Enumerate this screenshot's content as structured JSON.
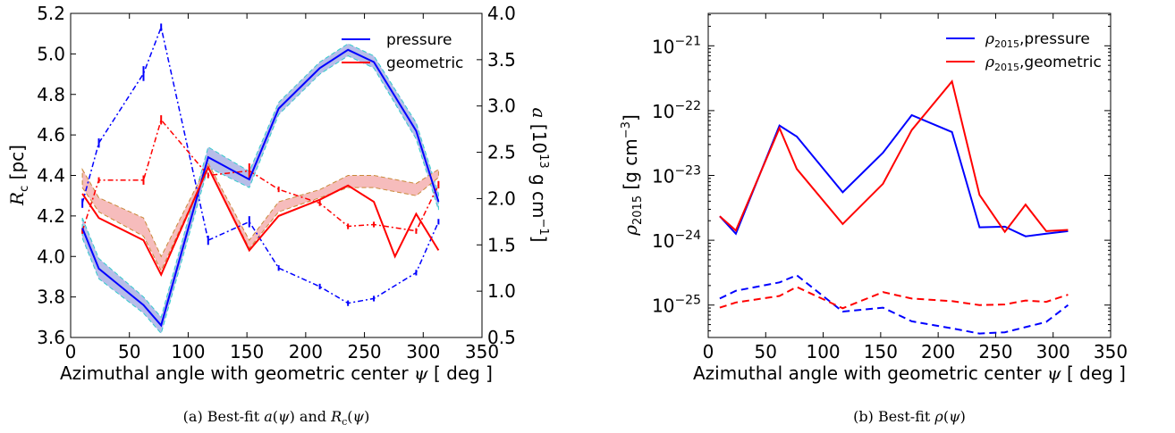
{
  "chart_data": [
    {
      "type": "line",
      "panel": "a",
      "caption": {
        "prefix": "(a) Best-fit ",
        "math1": "a",
        "mid1": "(",
        "psi1": "ψ",
        "mid2": ") and ",
        "math2": "R",
        "sub2": "c",
        "mid3": "(",
        "psi2": "ψ",
        "suffix": ")"
      },
      "xlabel": {
        "text": "Azimuthal angle with geometric center ",
        "sym": "ψ",
        "unit": " [ deg ]"
      },
      "ylabel_left": {
        "sym": "R",
        "sub": "c",
        "unit": " [pc]"
      },
      "ylabel_right": {
        "sym": "a",
        "unit": " [10",
        "exp": "13",
        "unit2": " g cm",
        "exp2": "−1",
        "close": "]"
      },
      "xlim": [
        0,
        350
      ],
      "ylim_left": [
        3.6,
        5.2
      ],
      "ylim_right": [
        0.5,
        4.0
      ],
      "xticks": [
        "0",
        "50",
        "100",
        "150",
        "200",
        "250",
        "300",
        "350"
      ],
      "yticks_left": [
        "3.6",
        "3.8",
        "4.0",
        "4.2",
        "4.4",
        "4.6",
        "4.8",
        "5.0",
        "5.2"
      ],
      "yticks_right": [
        "0.5",
        "1.0",
        "1.5",
        "2.0",
        "2.5",
        "3.0",
        "3.5",
        "4.0"
      ],
      "legend": {
        "position": "top-right",
        "entries": [
          "pressure",
          "geometric"
        ]
      },
      "colors": {
        "pressure": "#0000ff",
        "geometric": "#ff0000",
        "band_pressure": "#b7bde8",
        "band_geometric": "#f6bcbc"
      },
      "x": [
        10,
        24,
        62,
        77,
        117,
        152,
        177,
        212,
        236,
        258,
        294,
        313
      ],
      "series": [
        {
          "name": "pressure",
          "axis": "left",
          "style": "solid",
          "values": [
            4.14,
            3.94,
            3.76,
            3.66,
            4.49,
            4.38,
            4.73,
            4.93,
            5.02,
            4.96,
            4.62,
            4.27
          ],
          "band": [
            0.05,
            0.05,
            0.04,
            0.04,
            0.05,
            0.04,
            0.03,
            0.03,
            0.03,
            0.03,
            0.04,
            0.04
          ]
        },
        {
          "name": "geometric",
          "axis": "left",
          "style": "solid",
          "x": [
            10,
            24,
            62,
            77,
            117,
            152,
            177,
            212,
            236,
            258,
            276,
            294,
            313
          ],
          "values": [
            4.31,
            4.19,
            4.08,
            3.91,
            4.44,
            4.03,
            4.2,
            4.28,
            4.35,
            4.27,
            4.0,
            4.21,
            4.03
          ],
          "band_x": [
            10,
            24,
            62,
            77,
            117,
            152,
            177,
            212,
            236,
            258,
            294,
            313
          ],
          "band_lo": [
            4.34,
            4.22,
            4.1,
            3.93,
            4.44,
            4.04,
            4.22,
            4.29,
            4.34,
            4.34,
            4.3,
            4.39
          ],
          "band_hi": [
            4.43,
            4.29,
            4.19,
            4.0,
            4.46,
            4.08,
            4.27,
            4.33,
            4.4,
            4.4,
            4.36,
            4.43
          ]
        },
        {
          "name": "",
          "axis": "right",
          "style": "dashdot",
          "color": "#0000ff",
          "values": [
            1.95,
            2.6,
            3.35,
            3.85,
            1.55,
            1.75,
            1.25,
            1.05,
            0.87,
            0.92,
            1.2,
            1.75
          ],
          "err": [
            0.05,
            0.05,
            0.08,
            0.04,
            0.05,
            0.06,
            0.03,
            0.03,
            0.03,
            0.03,
            0.03,
            0.03
          ]
        },
        {
          "name": "",
          "axis": "right",
          "style": "dashdot",
          "color": "#ff0000",
          "values": [
            1.65,
            2.2,
            2.2,
            2.85,
            2.25,
            2.3,
            2.1,
            1.95,
            1.7,
            1.72,
            1.65,
            2.15
          ],
          "err": [
            0.03,
            0.03,
            0.05,
            0.05,
            0.03,
            0.08,
            0.03,
            0.03,
            0.03,
            0.03,
            0.03,
            0.04
          ]
        }
      ]
    },
    {
      "type": "line",
      "panel": "b",
      "caption": {
        "prefix": "(b) Best-fit ",
        "math": "ρ",
        "mid": "(",
        "psi": "ψ",
        "suffix": ")"
      },
      "xlabel": {
        "text": "Azimuthal angle with geometric center ",
        "sym": "ψ",
        "unit": " [ deg ]"
      },
      "ylabel": {
        "sym": "ρ",
        "sub": "2015",
        "unit": " [g cm",
        "exp": "−3",
        "close": "]"
      },
      "scale_y": "log",
      "xlim": [
        0,
        350
      ],
      "ylim_exp": [
        -25.5,
        -20.5
      ],
      "xticks": [
        "0",
        "50",
        "100",
        "150",
        "200",
        "250",
        "300",
        "350"
      ],
      "yticks": [
        {
          "base": "10",
          "exp": "−25",
          "v": -25
        },
        {
          "base": "10",
          "exp": "−24",
          "v": -24
        },
        {
          "base": "10",
          "exp": "−23",
          "v": -23
        },
        {
          "base": "10",
          "exp": "−22",
          "v": -22
        },
        {
          "base": "10",
          "exp": "−21",
          "v": -21
        }
      ],
      "legend": {
        "position": "top-right",
        "entries": [
          {
            "sym": "ρ",
            "sub": "2015",
            "text": ",pressure"
          },
          {
            "sym": "ρ",
            "sub": "2015",
            "text": ",geometric"
          }
        ]
      },
      "colors": {
        "pressure": "#0000ff",
        "geometric": "#ff0000"
      },
      "x": [
        10,
        24,
        62,
        77,
        117,
        152,
        177,
        212,
        236,
        258,
        276,
        294,
        313
      ],
      "series": [
        {
          "name": "pressure",
          "style": "solid",
          "color": "#0000ff",
          "log10_values": [
            -23.63,
            -23.9,
            -22.23,
            -22.4,
            -23.26,
            -22.65,
            -22.07,
            -22.33,
            -23.8,
            -23.79,
            -23.94,
            -23.9,
            -23.86
          ]
        },
        {
          "name": "geometric",
          "style": "solid",
          "color": "#ff0000",
          "log10_values": [
            -23.63,
            -23.85,
            -22.27,
            -22.9,
            -23.75,
            -23.13,
            -22.3,
            -21.55,
            -23.3,
            -23.87,
            -23.45,
            -23.86,
            -23.84
          ]
        },
        {
          "name": "",
          "style": "dashed",
          "color": "#0000ff",
          "log10_values": [
            -24.9,
            -24.78,
            -24.65,
            -24.54,
            -25.1,
            -25.04,
            -25.25,
            -25.36,
            -25.44,
            -25.42,
            -25.34,
            -25.26,
            -25.0
          ]
        },
        {
          "name": "",
          "style": "dashed",
          "color": "#ff0000",
          "log10_values": [
            -25.04,
            -24.96,
            -24.86,
            -24.72,
            -25.05,
            -24.8,
            -24.9,
            -24.94,
            -25.0,
            -24.99,
            -24.93,
            -24.95,
            -24.84
          ]
        }
      ]
    }
  ]
}
